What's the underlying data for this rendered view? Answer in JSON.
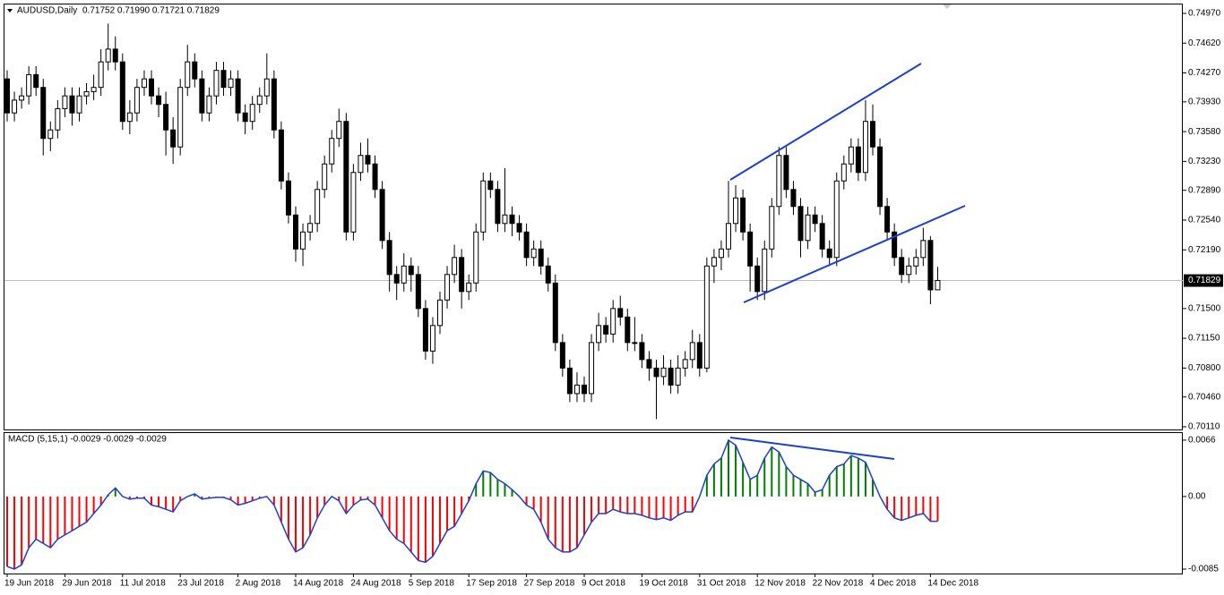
{
  "chart_data": [
    {
      "type": "candlestick",
      "title": "AUDUSD,Daily",
      "ohlc_text": "0.71752 0.71990 0.71721 0.71829",
      "ylim": [
        0.70078,
        0.75075
      ],
      "yticks": [
        {
          "value": 0.7497,
          "label": "0.74970"
        },
        {
          "value": 0.7462,
          "label": "0.74620"
        },
        {
          "value": 0.7427,
          "label": "0.74270"
        },
        {
          "value": 0.7393,
          "label": "0.73930"
        },
        {
          "value": 0.7358,
          "label": "0.73580"
        },
        {
          "value": 0.7323,
          "label": "0.73230"
        },
        {
          "value": 0.7289,
          "label": "0.72890"
        },
        {
          "value": 0.7254,
          "label": "0.72540"
        },
        {
          "value": 0.7219,
          "label": "0.72190"
        },
        {
          "value": 0.715,
          "label": "0.71500"
        },
        {
          "value": 0.7115,
          "label": "0.71150"
        },
        {
          "value": 0.708,
          "label": "0.70800"
        },
        {
          "value": 0.7046,
          "label": "0.70460"
        },
        {
          "value": 0.7011,
          "label": "0.70110"
        }
      ],
      "current_price": {
        "value": 0.71829,
        "label": "0.71829"
      },
      "up_color": "#ffffff",
      "down_color": "#000000",
      "categories": [
        "19 Jun 2018",
        null,
        null,
        null,
        null,
        null,
        null,
        null,
        "29 Jun 2018",
        null,
        null,
        null,
        null,
        null,
        null,
        null,
        "11 Jul 2018",
        null,
        null,
        null,
        null,
        null,
        null,
        null,
        "23 Jul 2018",
        null,
        null,
        null,
        null,
        null,
        null,
        null,
        "2 Aug 2018",
        null,
        null,
        null,
        null,
        null,
        null,
        null,
        "14 Aug 2018",
        null,
        null,
        null,
        null,
        null,
        null,
        null,
        "24 Aug 2018",
        null,
        null,
        null,
        null,
        null,
        null,
        null,
        "5 Sep 2018",
        null,
        null,
        null,
        null,
        null,
        null,
        null,
        "17 Sep 2018",
        null,
        null,
        null,
        null,
        null,
        null,
        null,
        "27 Sep 2018",
        null,
        null,
        null,
        null,
        null,
        null,
        null,
        "9 Oct 2018",
        null,
        null,
        null,
        null,
        null,
        null,
        null,
        "19 Oct 2018",
        null,
        null,
        null,
        null,
        null,
        null,
        null,
        "31 Oct 2018",
        null,
        null,
        null,
        null,
        null,
        null,
        null,
        "12 Nov 2018",
        null,
        null,
        null,
        null,
        null,
        null,
        null,
        "22 Nov 2018",
        null,
        null,
        null,
        null,
        null,
        null,
        null,
        "4 Dec 2018",
        null,
        null,
        null,
        null,
        null,
        null,
        null,
        "14 Dec 2018",
        null
      ],
      "candles": [
        [
          0.742,
          0.743,
          0.737,
          0.738
        ],
        [
          0.738,
          0.7405,
          0.737,
          0.7395
        ],
        [
          0.7395,
          0.741,
          0.7385,
          0.74
        ],
        [
          0.74,
          0.7435,
          0.739,
          0.7425
        ],
        [
          0.7425,
          0.7435,
          0.74,
          0.741
        ],
        [
          0.741,
          0.742,
          0.733,
          0.735
        ],
        [
          0.735,
          0.737,
          0.7335,
          0.736
        ],
        [
          0.736,
          0.7395,
          0.735,
          0.7385
        ],
        [
          0.7385,
          0.741,
          0.7375,
          0.74
        ],
        [
          0.74,
          0.741,
          0.7365,
          0.738
        ],
        [
          0.738,
          0.741,
          0.737,
          0.74
        ],
        [
          0.74,
          0.7415,
          0.739,
          0.7405
        ],
        [
          0.7405,
          0.7425,
          0.7395,
          0.741
        ],
        [
          0.741,
          0.7455,
          0.74,
          0.744
        ],
        [
          0.744,
          0.7485,
          0.743,
          0.7455
        ],
        [
          0.7455,
          0.747,
          0.743,
          0.744
        ],
        [
          0.744,
          0.745,
          0.736,
          0.737
        ],
        [
          0.737,
          0.7395,
          0.7355,
          0.738
        ],
        [
          0.738,
          0.742,
          0.737,
          0.741
        ],
        [
          0.741,
          0.743,
          0.74,
          0.742
        ],
        [
          0.742,
          0.743,
          0.739,
          0.74
        ],
        [
          0.74,
          0.741,
          0.7375,
          0.739
        ],
        [
          0.739,
          0.7405,
          0.733,
          0.736
        ],
        [
          0.736,
          0.7375,
          0.732,
          0.734
        ],
        [
          0.734,
          0.742,
          0.733,
          0.741
        ],
        [
          0.741,
          0.746,
          0.74,
          0.744
        ],
        [
          0.744,
          0.745,
          0.741,
          0.742
        ],
        [
          0.742,
          0.743,
          0.737,
          0.738
        ],
        [
          0.738,
          0.741,
          0.737,
          0.74
        ],
        [
          0.74,
          0.744,
          0.739,
          0.743
        ],
        [
          0.743,
          0.744,
          0.74,
          0.741
        ],
        [
          0.741,
          0.743,
          0.74,
          0.742
        ],
        [
          0.742,
          0.743,
          0.737,
          0.738
        ],
        [
          0.738,
          0.739,
          0.7355,
          0.737
        ],
        [
          0.737,
          0.74,
          0.736,
          0.739
        ],
        [
          0.739,
          0.741,
          0.738,
          0.74
        ],
        [
          0.74,
          0.745,
          0.739,
          0.742
        ],
        [
          0.742,
          0.743,
          0.735,
          0.736
        ],
        [
          0.736,
          0.737,
          0.729,
          0.73
        ],
        [
          0.73,
          0.731,
          0.725,
          0.726
        ],
        [
          0.726,
          0.727,
          0.7205,
          0.722
        ],
        [
          0.722,
          0.725,
          0.72,
          0.724
        ],
        [
          0.724,
          0.726,
          0.723,
          0.725
        ],
        [
          0.725,
          0.73,
          0.724,
          0.729
        ],
        [
          0.729,
          0.733,
          0.728,
          0.732
        ],
        [
          0.732,
          0.736,
          0.731,
          0.735
        ],
        [
          0.735,
          0.7385,
          0.734,
          0.737
        ],
        [
          0.737,
          0.738,
          0.723,
          0.724
        ],
        [
          0.724,
          0.732,
          0.723,
          0.731
        ],
        [
          0.731,
          0.7345,
          0.73,
          0.733
        ],
        [
          0.733,
          0.735,
          0.731,
          0.732
        ],
        [
          0.732,
          0.733,
          0.728,
          0.729
        ],
        [
          0.729,
          0.73,
          0.722,
          0.723
        ],
        [
          0.723,
          0.724,
          0.717,
          0.719
        ],
        [
          0.719,
          0.72,
          0.716,
          0.718
        ],
        [
          0.718,
          0.7215,
          0.717,
          0.72
        ],
        [
          0.72,
          0.721,
          0.717,
          0.719
        ],
        [
          0.719,
          0.72,
          0.714,
          0.715
        ],
        [
          0.715,
          0.716,
          0.709,
          0.71
        ],
        [
          0.71,
          0.714,
          0.7085,
          0.713
        ],
        [
          0.713,
          0.717,
          0.712,
          0.716
        ],
        [
          0.716,
          0.72,
          0.715,
          0.719
        ],
        [
          0.719,
          0.7225,
          0.718,
          0.721
        ],
        [
          0.721,
          0.722,
          0.715,
          0.717
        ],
        [
          0.717,
          0.719,
          0.716,
          0.718
        ],
        [
          0.718,
          0.725,
          0.717,
          0.724
        ],
        [
          0.724,
          0.731,
          0.723,
          0.73
        ],
        [
          0.73,
          0.731,
          0.728,
          0.729
        ],
        [
          0.729,
          0.73,
          0.724,
          0.725
        ],
        [
          0.725,
          0.7315,
          0.724,
          0.726
        ],
        [
          0.726,
          0.727,
          0.7235,
          0.725
        ],
        [
          0.725,
          0.726,
          0.723,
          0.724
        ],
        [
          0.724,
          0.725,
          0.72,
          0.721
        ],
        [
          0.721,
          0.723,
          0.72,
          0.722
        ],
        [
          0.722,
          0.723,
          0.719,
          0.72
        ],
        [
          0.72,
          0.721,
          0.717,
          0.718
        ],
        [
          0.718,
          0.719,
          0.71,
          0.711
        ],
        [
          0.711,
          0.712,
          0.707,
          0.708
        ],
        [
          0.708,
          0.709,
          0.704,
          0.705
        ],
        [
          0.705,
          0.7075,
          0.704,
          0.706
        ],
        [
          0.706,
          0.707,
          0.704,
          0.705
        ],
        [
          0.705,
          0.712,
          0.704,
          0.711
        ],
        [
          0.711,
          0.7145,
          0.71,
          0.713
        ],
        [
          0.713,
          0.714,
          0.711,
          0.712
        ],
        [
          0.712,
          0.716,
          0.711,
          0.715
        ],
        [
          0.715,
          0.7165,
          0.713,
          0.714
        ],
        [
          0.714,
          0.715,
          0.71,
          0.711
        ],
        [
          0.711,
          0.714,
          0.71,
          0.711
        ],
        [
          0.711,
          0.712,
          0.708,
          0.709
        ],
        [
          0.709,
          0.71,
          0.7065,
          0.708
        ],
        [
          0.708,
          0.709,
          0.702,
          0.707
        ],
        [
          0.707,
          0.7095,
          0.706,
          0.708
        ],
        [
          0.708,
          0.709,
          0.705,
          0.706
        ],
        [
          0.706,
          0.7095,
          0.705,
          0.708
        ],
        [
          0.708,
          0.71,
          0.707,
          0.709
        ],
        [
          0.709,
          0.7125,
          0.708,
          0.711
        ],
        [
          0.711,
          0.712,
          0.707,
          0.708
        ],
        [
          0.708,
          0.721,
          0.7075,
          0.72
        ],
        [
          0.72,
          0.722,
          0.718,
          0.721
        ],
        [
          0.721,
          0.723,
          0.7195,
          0.722
        ],
        [
          0.722,
          0.73,
          0.721,
          0.725
        ],
        [
          0.725,
          0.7295,
          0.724,
          0.728
        ],
        [
          0.728,
          0.729,
          0.723,
          0.724
        ],
        [
          0.724,
          0.725,
          0.717,
          0.72
        ],
        [
          0.72,
          0.721,
          0.716,
          0.717
        ],
        [
          0.717,
          0.723,
          0.716,
          0.722
        ],
        [
          0.722,
          0.728,
          0.721,
          0.727
        ],
        [
          0.727,
          0.734,
          0.726,
          0.733
        ],
        [
          0.733,
          0.734,
          0.728,
          0.729
        ],
        [
          0.729,
          0.73,
          0.726,
          0.727
        ],
        [
          0.727,
          0.728,
          0.721,
          0.723
        ],
        [
          0.723,
          0.727,
          0.722,
          0.726
        ],
        [
          0.726,
          0.727,
          0.724,
          0.725
        ],
        [
          0.725,
          0.726,
          0.721,
          0.722
        ],
        [
          0.722,
          0.723,
          0.72,
          0.721
        ],
        [
          0.721,
          0.731,
          0.72,
          0.73
        ],
        [
          0.73,
          0.733,
          0.729,
          0.732
        ],
        [
          0.732,
          0.735,
          0.731,
          0.734
        ],
        [
          0.734,
          0.735,
          0.73,
          0.731
        ],
        [
          0.731,
          0.7395,
          0.73,
          0.737
        ],
        [
          0.737,
          0.739,
          0.733,
          0.734
        ],
        [
          0.734,
          0.735,
          0.726,
          0.727
        ],
        [
          0.727,
          0.728,
          0.723,
          0.724
        ],
        [
          0.724,
          0.725,
          0.72,
          0.721
        ],
        [
          0.721,
          0.722,
          0.718,
          0.719
        ],
        [
          0.719,
          0.721,
          0.718,
          0.72
        ],
        [
          0.72,
          0.722,
          0.719,
          0.721
        ],
        [
          0.721,
          0.7245,
          0.72,
          0.723
        ],
        [
          0.723,
          0.7235,
          0.7155,
          0.7172
        ],
        [
          0.7172,
          0.7199,
          0.7172,
          0.7183
        ]
      ]
    },
    {
      "type": "macd",
      "title": "MACD (5,15,1) -0.0029 -0.0029 -0.0029",
      "ylim": [
        -0.00902,
        0.00743
      ],
      "yticks": [
        0.0066,
        {
          "value": 0,
          "label": "0.00"
        },
        -0.0085
      ],
      "up_color": "#008000",
      "down_color": "#ff0000",
      "line_color": "#1f3fcf",
      "values": [
        -0.0082,
        -0.0085,
        -0.008,
        -0.006,
        -0.005,
        -0.0055,
        -0.006,
        -0.005,
        -0.0045,
        -0.004,
        -0.0035,
        -0.003,
        -0.002,
        -0.001,
        0.0002,
        0.001,
        0,
        -0.0003,
        -0.0002,
        -0.0002,
        -0.001,
        -0.0012,
        -0.0015,
        -0.0018,
        -0.0005,
        0,
        0.0003,
        -0.0003,
        -0.0002,
        -0.0001,
        -0.0001,
        -0.0004,
        -0.001,
        -0.0008,
        -0.0005,
        -0.0002,
        0,
        -0.001,
        -0.003,
        -0.005,
        -0.0065,
        -0.006,
        -0.0045,
        -0.0025,
        -0.001,
        0,
        -0.0005,
        -0.002,
        -0.001,
        -0.0004,
        -0.0003,
        -0.001,
        -0.0025,
        -0.004,
        -0.005,
        -0.0055,
        -0.0065,
        -0.0075,
        -0.0077,
        -0.007,
        -0.0055,
        -0.004,
        -0.0035,
        -0.002,
        -0.0005,
        0.0015,
        0.003,
        0.0028,
        0.002,
        0.0015,
        0.0008,
        0,
        -0.001,
        -0.0015,
        -0.003,
        -0.005,
        -0.006,
        -0.0065,
        -0.0065,
        -0.006,
        -0.0045,
        -0.003,
        -0.002,
        -0.002,
        -0.0015,
        -0.0018,
        -0.002,
        -0.002,
        -0.0022,
        -0.0025,
        -0.0027,
        -0.0025,
        -0.0028,
        -0.0022,
        -0.0018,
        -0.0018,
        0,
        0.0025,
        0.0038,
        0.0045,
        0.0066,
        0.006,
        0.004,
        0.002,
        0.0025,
        0.0045,
        0.0058,
        0.0052,
        0.0035,
        0.0025,
        0.002,
        0.0015,
        0.0005,
        0.0008,
        0.0025,
        0.0035,
        0.0038,
        0.0048,
        0.0045,
        0.004,
        0.002,
        0,
        -0.0015,
        -0.0025,
        -0.0028,
        -0.0025,
        -0.0022,
        -0.002,
        -0.0029,
        -0.0029
      ]
    }
  ]
}
